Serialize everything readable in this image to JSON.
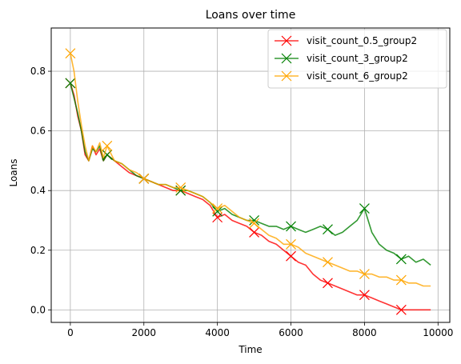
{
  "chart_data": {
    "type": "line",
    "title": "Loans over time",
    "xlabel": "Time",
    "ylabel": "Loans",
    "xlim": [
      -520,
      10320
    ],
    "ylim": [
      -0.042,
      0.945
    ],
    "xticks": [
      0,
      2000,
      4000,
      6000,
      8000,
      10000
    ],
    "xtick_labels": [
      "0",
      "2000",
      "4000",
      "6000",
      "8000",
      "10000"
    ],
    "yticks": [
      0.0,
      0.2,
      0.4,
      0.6,
      0.8
    ],
    "ytick_labels": [
      "0.0",
      "0.2",
      "0.4",
      "0.6",
      "0.8"
    ],
    "grid": true,
    "legend_position": "top-right",
    "series": [
      {
        "name": "visit_count_0.5_group2",
        "color": "#ff0000",
        "marker": "x",
        "x": [
          0,
          100,
          200,
          300,
          400,
          500,
          600,
          700,
          800,
          900,
          1000,
          1200,
          1400,
          1600,
          1800,
          2000,
          2200,
          2400,
          2600,
          2800,
          3000,
          3200,
          3400,
          3600,
          3800,
          4000,
          4200,
          4400,
          4600,
          4800,
          5000,
          5200,
          5400,
          5600,
          5800,
          6000,
          6200,
          6400,
          6600,
          6800,
          7000,
          7200,
          7400,
          7600,
          7800,
          8000,
          8200,
          8400,
          8600,
          8800,
          9000,
          9200,
          9400,
          9600,
          9800
        ],
        "y": [
          0.76,
          0.72,
          0.65,
          0.6,
          0.52,
          0.5,
          0.55,
          0.52,
          0.54,
          0.5,
          0.52,
          0.5,
          0.48,
          0.46,
          0.45,
          0.44,
          0.43,
          0.42,
          0.41,
          0.4,
          0.4,
          0.39,
          0.38,
          0.37,
          0.35,
          0.31,
          0.32,
          0.3,
          0.29,
          0.28,
          0.26,
          0.25,
          0.23,
          0.22,
          0.2,
          0.18,
          0.16,
          0.15,
          0.12,
          0.1,
          0.09,
          0.08,
          0.07,
          0.06,
          0.05,
          0.05,
          0.04,
          0.03,
          0.02,
          0.01,
          0.0,
          0.0,
          0.0,
          0.0,
          0.0
        ],
        "marker_x": [
          0,
          1000,
          2000,
          3000,
          4000,
          5000,
          6000,
          7000,
          8000,
          9000
        ],
        "marker_y": [
          0.76,
          0.52,
          0.44,
          0.4,
          0.31,
          0.26,
          0.18,
          0.09,
          0.05,
          0.0
        ]
      },
      {
        "name": "visit_count_3_group2",
        "color": "#008000",
        "marker": "x",
        "x": [
          0,
          100,
          200,
          300,
          400,
          500,
          600,
          700,
          800,
          900,
          1000,
          1200,
          1400,
          1600,
          1800,
          2000,
          2200,
          2400,
          2600,
          2800,
          3000,
          3200,
          3400,
          3600,
          3800,
          4000,
          4200,
          4400,
          4600,
          4800,
          5000,
          5200,
          5400,
          5600,
          5800,
          6000,
          6200,
          6400,
          6600,
          6800,
          7000,
          7200,
          7400,
          7600,
          7800,
          8000,
          8200,
          8400,
          8600,
          8800,
          9000,
          9200,
          9400,
          9600,
          9800
        ],
        "y": [
          0.76,
          0.71,
          0.66,
          0.6,
          0.53,
          0.5,
          0.54,
          0.53,
          0.55,
          0.5,
          0.52,
          0.5,
          0.49,
          0.47,
          0.45,
          0.44,
          0.43,
          0.42,
          0.42,
          0.41,
          0.4,
          0.4,
          0.39,
          0.38,
          0.36,
          0.33,
          0.34,
          0.32,
          0.31,
          0.3,
          0.3,
          0.29,
          0.28,
          0.28,
          0.27,
          0.28,
          0.27,
          0.26,
          0.27,
          0.28,
          0.27,
          0.25,
          0.26,
          0.28,
          0.3,
          0.34,
          0.26,
          0.22,
          0.2,
          0.19,
          0.17,
          0.18,
          0.16,
          0.17,
          0.15
        ],
        "marker_x": [
          0,
          1000,
          2000,
          3000,
          4000,
          5000,
          6000,
          7000,
          8000,
          9000
        ],
        "marker_y": [
          0.76,
          0.52,
          0.44,
          0.4,
          0.33,
          0.3,
          0.28,
          0.27,
          0.34,
          0.17
        ]
      },
      {
        "name": "visit_count_6_group2",
        "color": "#ffa500",
        "marker": "x",
        "x": [
          0,
          100,
          200,
          300,
          400,
          500,
          600,
          700,
          800,
          900,
          1000,
          1200,
          1400,
          1600,
          1800,
          2000,
          2200,
          2400,
          2600,
          2800,
          3000,
          3200,
          3400,
          3600,
          3800,
          4000,
          4200,
          4400,
          4600,
          4800,
          5000,
          5200,
          5400,
          5600,
          5800,
          6000,
          6200,
          6400,
          6600,
          6800,
          7000,
          7200,
          7400,
          7600,
          7800,
          8000,
          8200,
          8400,
          8600,
          8800,
          9000,
          9200,
          9400,
          9600,
          9800
        ],
        "y": [
          0.86,
          0.8,
          0.7,
          0.62,
          0.55,
          0.5,
          0.55,
          0.53,
          0.56,
          0.51,
          0.55,
          0.5,
          0.49,
          0.47,
          0.46,
          0.44,
          0.43,
          0.42,
          0.42,
          0.41,
          0.41,
          0.4,
          0.39,
          0.38,
          0.36,
          0.34,
          0.35,
          0.33,
          0.31,
          0.3,
          0.29,
          0.27,
          0.25,
          0.24,
          0.22,
          0.22,
          0.21,
          0.19,
          0.18,
          0.17,
          0.16,
          0.15,
          0.14,
          0.13,
          0.13,
          0.12,
          0.12,
          0.11,
          0.11,
          0.1,
          0.1,
          0.09,
          0.09,
          0.08,
          0.08
        ],
        "marker_x": [
          0,
          1000,
          2000,
          3000,
          4000,
          5000,
          6000,
          7000,
          8000,
          9000
        ],
        "marker_y": [
          0.86,
          0.55,
          0.44,
          0.41,
          0.34,
          0.29,
          0.22,
          0.16,
          0.12,
          0.1
        ]
      }
    ]
  }
}
